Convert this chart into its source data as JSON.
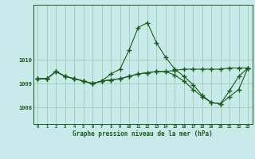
{
  "xlabel": "Graphe pression niveau de la mer (hPa)",
  "background_color": "#c8eaea",
  "grid_color": "#96c8a0",
  "line_color": "#1a5c1a",
  "hours": [
    0,
    1,
    2,
    3,
    4,
    5,
    6,
    7,
    8,
    9,
    10,
    11,
    12,
    13,
    14,
    15,
    16,
    17,
    18,
    19,
    20,
    21,
    22,
    23
  ],
  "series1": [
    1009.2,
    1009.2,
    1009.5,
    1009.3,
    1009.2,
    1009.1,
    1009.0,
    1009.1,
    1009.4,
    1009.6,
    1010.4,
    1011.35,
    1011.55,
    1010.7,
    1010.1,
    1009.6,
    1009.3,
    1008.95,
    1008.5,
    1008.2,
    1008.15,
    1008.7,
    1009.3,
    1009.65
  ],
  "series2": [
    1009.2,
    1009.2,
    1009.5,
    1009.3,
    1009.2,
    1009.1,
    1009.0,
    1009.1,
    1009.15,
    1009.2,
    1009.3,
    1009.4,
    1009.45,
    1009.5,
    1009.5,
    1009.55,
    1009.6,
    1009.6,
    1009.6,
    1009.6,
    1009.6,
    1009.65,
    1009.65,
    1009.65
  ],
  "series3": [
    1009.2,
    1009.2,
    1009.5,
    1009.3,
    1009.2,
    1009.1,
    1009.0,
    1009.1,
    1009.15,
    1009.2,
    1009.3,
    1009.4,
    1009.45,
    1009.5,
    1009.5,
    1009.35,
    1009.1,
    1008.75,
    1008.45,
    1008.2,
    1008.15,
    1008.45,
    1008.75,
    1009.65
  ],
  "ylim": [
    1007.3,
    1012.3
  ],
  "yticks": [
    1008,
    1009,
    1010
  ],
  "xlim": [
    -0.5,
    23.5
  ]
}
